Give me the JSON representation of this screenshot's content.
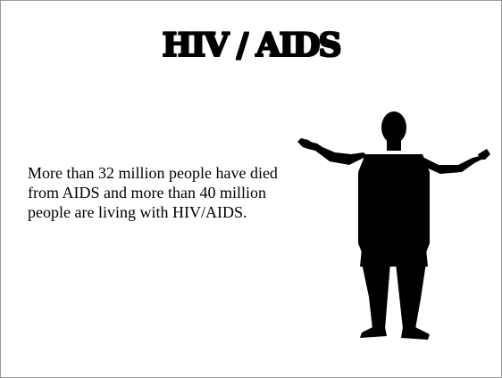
{
  "slide": {
    "title": "HIV / AIDS",
    "body": "More than 32 million people have died from AIDS and more than 40 million people are living with HIV/AIDS."
  },
  "figure": {
    "icon": "person-shrugging-silhouette-icon",
    "color": "#000000"
  }
}
